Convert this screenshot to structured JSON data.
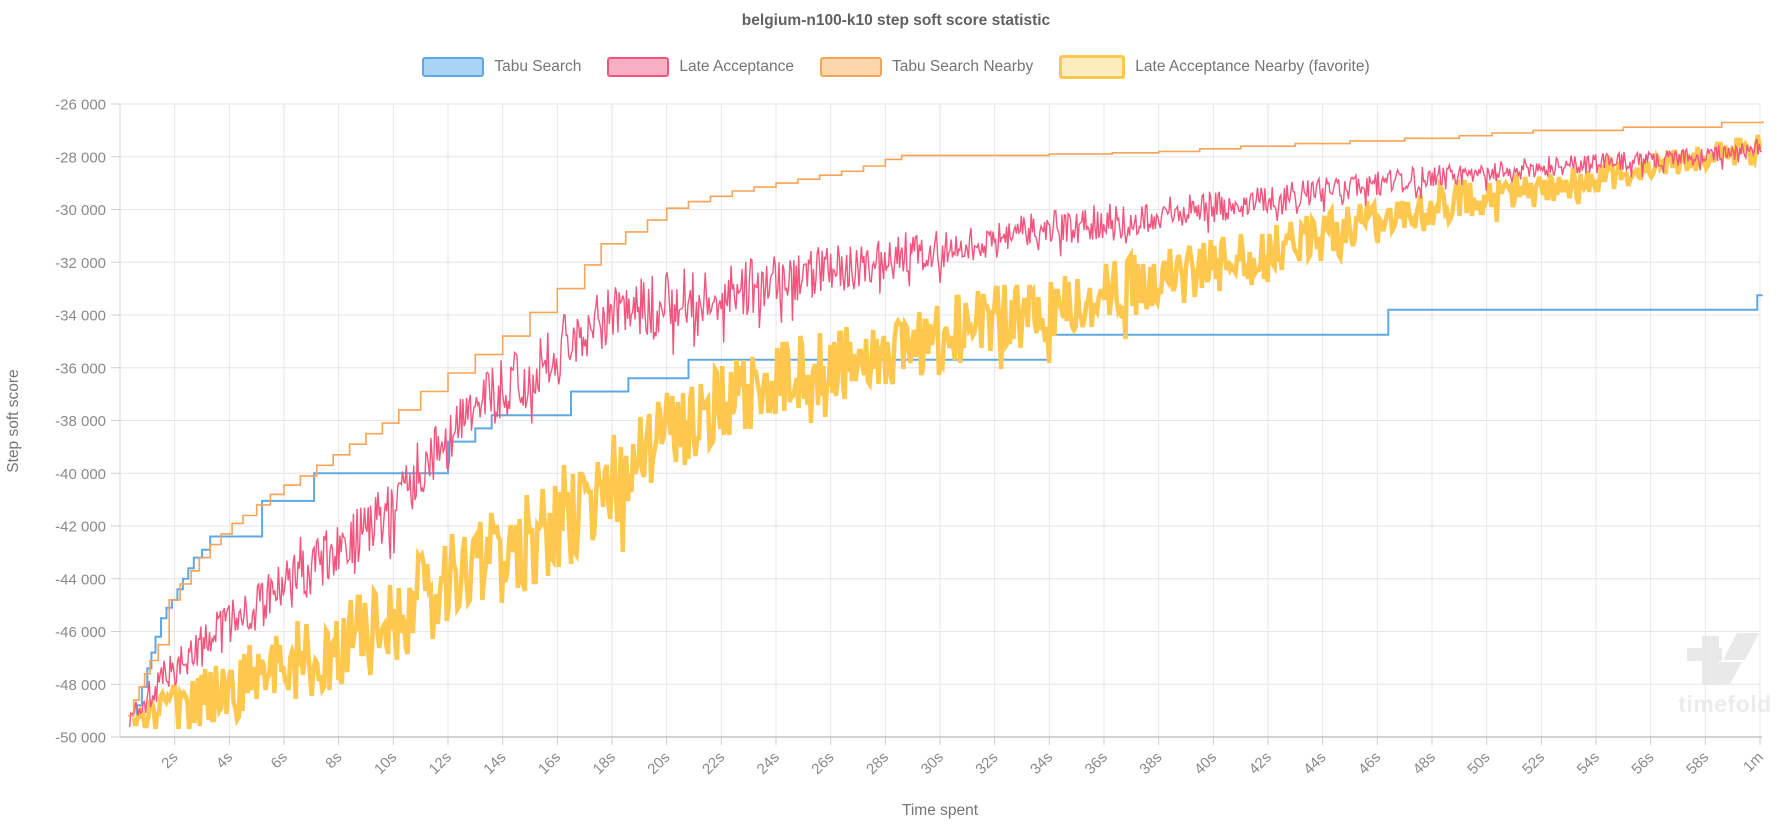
{
  "title": "belgium-n100-k10 step soft score statistic",
  "legend": {
    "items": [
      {
        "label": "Tabu Search",
        "stroke": "#5fa8e6",
        "fill": "#a9d4f5",
        "favorite": false
      },
      {
        "label": "Late Acceptance",
        "stroke": "#f2567e",
        "fill": "#f9b0c5",
        "favorite": false
      },
      {
        "label": "Tabu Search Nearby",
        "stroke": "#f7a457",
        "fill": "#fcd7ab",
        "favorite": false
      },
      {
        "label": "Late Acceptance Nearby (favorite)",
        "stroke": "#fdc84d",
        "fill": "#fdedbc",
        "favorite": true
      }
    ]
  },
  "axes": {
    "x": {
      "title": "Time spent",
      "ticks": [
        {
          "t": 2,
          "label": "2s"
        },
        {
          "t": 4,
          "label": "4s"
        },
        {
          "t": 6,
          "label": "6s"
        },
        {
          "t": 8,
          "label": "8s"
        },
        {
          "t": 10,
          "label": "10s"
        },
        {
          "t": 12,
          "label": "12s"
        },
        {
          "t": 14,
          "label": "14s"
        },
        {
          "t": 16,
          "label": "16s"
        },
        {
          "t": 18,
          "label": "18s"
        },
        {
          "t": 20,
          "label": "20s"
        },
        {
          "t": 22,
          "label": "22s"
        },
        {
          "t": 24,
          "label": "24s"
        },
        {
          "t": 26,
          "label": "26s"
        },
        {
          "t": 28,
          "label": "28s"
        },
        {
          "t": 30,
          "label": "30s"
        },
        {
          "t": 32,
          "label": "32s"
        },
        {
          "t": 34,
          "label": "34s"
        },
        {
          "t": 36,
          "label": "36s"
        },
        {
          "t": 38,
          "label": "38s"
        },
        {
          "t": 40,
          "label": "40s"
        },
        {
          "t": 42,
          "label": "42s"
        },
        {
          "t": 44,
          "label": "44s"
        },
        {
          "t": 46,
          "label": "46s"
        },
        {
          "t": 48,
          "label": "48s"
        },
        {
          "t": 50,
          "label": "50s"
        },
        {
          "t": 52,
          "label": "52s"
        },
        {
          "t": 54,
          "label": "54s"
        },
        {
          "t": 56,
          "label": "56s"
        },
        {
          "t": 58,
          "label": "58s"
        },
        {
          "t": 60,
          "label": "1m"
        }
      ]
    },
    "y": {
      "title": "Step soft score",
      "ticks": [
        {
          "v": -26000,
          "label": "-26 000"
        },
        {
          "v": -28000,
          "label": "-28 000"
        },
        {
          "v": -30000,
          "label": "-30 000"
        },
        {
          "v": -32000,
          "label": "-32 000"
        },
        {
          "v": -34000,
          "label": "-34 000"
        },
        {
          "v": -36000,
          "label": "-36 000"
        },
        {
          "v": -38000,
          "label": "-38 000"
        },
        {
          "v": -40000,
          "label": "-40 000"
        },
        {
          "v": -42000,
          "label": "-42 000"
        },
        {
          "v": -44000,
          "label": "-44 000"
        },
        {
          "v": -46000,
          "label": "-46 000"
        },
        {
          "v": -48000,
          "label": "-48 000"
        },
        {
          "v": -50000,
          "label": "-50 000"
        }
      ]
    }
  },
  "chart_data": {
    "type": "line",
    "xlabel": "Time spent",
    "ylabel": "Step soft score",
    "xlim": [
      0,
      60.1
    ],
    "ylim": [
      -50000,
      -26000
    ],
    "grid": true,
    "legend_position": "top",
    "series": [
      {
        "id": "tabu-search",
        "name": "Tabu Search",
        "color": "#5fa8e6",
        "style": "step",
        "stroke_width": 2,
        "points": [
          [
            0.5,
            -49300
          ],
          [
            0.62,
            -48800
          ],
          [
            0.8,
            -48100
          ],
          [
            1.0,
            -47400
          ],
          [
            1.15,
            -46800
          ],
          [
            1.3,
            -46200
          ],
          [
            1.5,
            -45500
          ],
          [
            1.7,
            -45100
          ],
          [
            1.9,
            -44800
          ],
          [
            2.1,
            -44400
          ],
          [
            2.3,
            -44000
          ],
          [
            2.5,
            -43600
          ],
          [
            2.7,
            -43200
          ],
          [
            3.0,
            -42900
          ],
          [
            3.3,
            -42400
          ],
          [
            5.2,
            -41050
          ],
          [
            7.1,
            -40000
          ],
          [
            12.0,
            -38800
          ],
          [
            13.0,
            -38300
          ],
          [
            13.6,
            -37800
          ],
          [
            16.5,
            -36900
          ],
          [
            18.6,
            -36400
          ],
          [
            20.8,
            -35700
          ],
          [
            34.0,
            -34750
          ],
          [
            46.4,
            -33800
          ],
          [
            59.9,
            -33250
          ],
          [
            60.1,
            -33250
          ]
        ]
      },
      {
        "id": "late-acceptance-nearby",
        "name": "Late Acceptance Nearby (favorite)",
        "color": "#fdc84d",
        "style": "noisy",
        "stroke_width": 4.5,
        "seed": 4242,
        "dt": 0.065,
        "quantize": 3,
        "points": [
          [
            0.45,
            -49400
          ],
          [
            1,
            -49200
          ],
          [
            2,
            -48900
          ],
          [
            3,
            -48500
          ],
          [
            4,
            -48100
          ],
          [
            5,
            -47700
          ],
          [
            6,
            -47200
          ],
          [
            7,
            -46800
          ],
          [
            8,
            -46300
          ],
          [
            9,
            -45900
          ],
          [
            10,
            -45400
          ],
          [
            11,
            -44900
          ],
          [
            12,
            -44300
          ],
          [
            13,
            -43700
          ],
          [
            14,
            -43100
          ],
          [
            15,
            -42500
          ],
          [
            16,
            -41800
          ],
          [
            17,
            -41200
          ],
          [
            18,
            -40400
          ],
          [
            19,
            -39500
          ],
          [
            20,
            -38600
          ],
          [
            21,
            -38000
          ],
          [
            22,
            -37500
          ],
          [
            23,
            -37000
          ],
          [
            24,
            -36500
          ],
          [
            25,
            -36200
          ],
          [
            26,
            -35900
          ],
          [
            27,
            -35600
          ],
          [
            28,
            -35400
          ],
          [
            29,
            -35100
          ],
          [
            30,
            -34900
          ],
          [
            31,
            -34500
          ],
          [
            32,
            -34200
          ],
          [
            33,
            -33900
          ],
          [
            34,
            -33700
          ],
          [
            35,
            -33400
          ],
          [
            36,
            -33200
          ],
          [
            37,
            -32900
          ],
          [
            38,
            -32700
          ],
          [
            39,
            -32450
          ],
          [
            40,
            -32200
          ],
          [
            41,
            -31900
          ],
          [
            42,
            -31600
          ],
          [
            43,
            -31300
          ],
          [
            44,
            -31000
          ],
          [
            45,
            -30700
          ],
          [
            46,
            -30400
          ],
          [
            47,
            -30150
          ],
          [
            48,
            -29900
          ],
          [
            49,
            -29650
          ],
          [
            50,
            -29400
          ],
          [
            51,
            -29300
          ],
          [
            52,
            -29200
          ],
          [
            53,
            -29000
          ],
          [
            54,
            -28900
          ],
          [
            55,
            -28650
          ],
          [
            56,
            -28400
          ],
          [
            57,
            -28200
          ],
          [
            58,
            -28000
          ],
          [
            59,
            -27800
          ],
          [
            60.1,
            -27500
          ]
        ],
        "noise_amp": [
          [
            0.45,
            400
          ],
          [
            2,
            900
          ],
          [
            5,
            1500
          ],
          [
            8,
            1800
          ],
          [
            12,
            1900
          ],
          [
            16,
            1900
          ],
          [
            20,
            1700
          ],
          [
            24,
            1500
          ],
          [
            28,
            1400
          ],
          [
            32,
            1300
          ],
          [
            36,
            1200
          ],
          [
            40,
            1050
          ],
          [
            44,
            900
          ],
          [
            48,
            800
          ],
          [
            52,
            650
          ],
          [
            56,
            520
          ],
          [
            60.1,
            420
          ]
        ]
      },
      {
        "id": "late-acceptance",
        "name": "Late Acceptance",
        "color": "#f2567e",
        "style": "noisy",
        "stroke_width": 1.4,
        "seed": 1337,
        "dt": 0.045,
        "quantize": 0,
        "points": [
          [
            0.35,
            -49300
          ],
          [
            1,
            -48400
          ],
          [
            2,
            -47400
          ],
          [
            3,
            -46500
          ],
          [
            4,
            -45800
          ],
          [
            5,
            -45000
          ],
          [
            6,
            -44300
          ],
          [
            7,
            -43600
          ],
          [
            8,
            -42900
          ],
          [
            9,
            -42100
          ],
          [
            10,
            -41300
          ],
          [
            11,
            -40000
          ],
          [
            12,
            -38800
          ],
          [
            13,
            -37600
          ],
          [
            14,
            -36800
          ],
          [
            15,
            -36100
          ],
          [
            16,
            -35400
          ],
          [
            17,
            -34500
          ],
          [
            18,
            -34000
          ],
          [
            19,
            -33800
          ],
          [
            20,
            -33500
          ],
          [
            23,
            -32900
          ],
          [
            26,
            -32300
          ],
          [
            29,
            -31600
          ],
          [
            32,
            -31100
          ],
          [
            35,
            -30600
          ],
          [
            38,
            -30200
          ],
          [
            40,
            -29900
          ],
          [
            42,
            -29600
          ],
          [
            44,
            -29300
          ],
          [
            46,
            -29000
          ],
          [
            48,
            -28800
          ],
          [
            50,
            -28550
          ],
          [
            52,
            -28400
          ],
          [
            54,
            -28250
          ],
          [
            56,
            -28100
          ],
          [
            58,
            -27950
          ],
          [
            59.5,
            -27750
          ],
          [
            60.1,
            -27600
          ]
        ],
        "noise_amp": [
          [
            0.35,
            500
          ],
          [
            2,
            800
          ],
          [
            5,
            1000
          ],
          [
            10,
            1100
          ],
          [
            15,
            1200
          ],
          [
            20,
            1200
          ],
          [
            25,
            1000
          ],
          [
            30,
            800
          ],
          [
            35,
            700
          ],
          [
            40,
            600
          ],
          [
            45,
            500
          ],
          [
            50,
            430
          ],
          [
            55,
            380
          ],
          [
            60.1,
            330
          ]
        ]
      },
      {
        "id": "tabu-search-nearby",
        "name": "Tabu Search Nearby",
        "color": "#f7a457",
        "style": "step",
        "stroke_width": 1.6,
        "points": [
          [
            0.3,
            -49200
          ],
          [
            0.5,
            -48600
          ],
          [
            0.7,
            -48100
          ],
          [
            0.9,
            -47600
          ],
          [
            1.1,
            -47100
          ],
          [
            1.4,
            -46500
          ],
          [
            1.8,
            -44800
          ],
          [
            2.2,
            -44200
          ],
          [
            2.6,
            -43700
          ],
          [
            2.9,
            -43200
          ],
          [
            3.3,
            -42700
          ],
          [
            3.7,
            -42300
          ],
          [
            4.1,
            -41900
          ],
          [
            4.5,
            -41600
          ],
          [
            5.0,
            -41200
          ],
          [
            5.5,
            -40800
          ],
          [
            6.0,
            -40450
          ],
          [
            6.6,
            -40100
          ],
          [
            7.2,
            -39700
          ],
          [
            7.8,
            -39300
          ],
          [
            8.4,
            -38900
          ],
          [
            9.0,
            -38500
          ],
          [
            9.6,
            -38100
          ],
          [
            10.2,
            -37600
          ],
          [
            11,
            -36900
          ],
          [
            12,
            -36200
          ],
          [
            13,
            -35500
          ],
          [
            14,
            -34800
          ],
          [
            15,
            -33900
          ],
          [
            16,
            -33000
          ],
          [
            17,
            -32100
          ],
          [
            17.6,
            -31300
          ],
          [
            18.5,
            -30850
          ],
          [
            19.3,
            -30400
          ],
          [
            20,
            -29950
          ],
          [
            20.8,
            -29700
          ],
          [
            21.6,
            -29500
          ],
          [
            22.4,
            -29300
          ],
          [
            23.2,
            -29150
          ],
          [
            24,
            -29000
          ],
          [
            24.8,
            -28850
          ],
          [
            25.6,
            -28700
          ],
          [
            26.4,
            -28550
          ],
          [
            27.2,
            -28350
          ],
          [
            28,
            -28100
          ],
          [
            28.6,
            -27950
          ],
          [
            34,
            -27900
          ],
          [
            36.3,
            -27850
          ],
          [
            38,
            -27800
          ],
          [
            39.5,
            -27700
          ],
          [
            41,
            -27600
          ],
          [
            43,
            -27500
          ],
          [
            45,
            -27400
          ],
          [
            47,
            -27300
          ],
          [
            49,
            -27200
          ],
          [
            50.2,
            -27100
          ],
          [
            51.7,
            -27000
          ],
          [
            55,
            -26880
          ],
          [
            58.6,
            -26700
          ],
          [
            60.1,
            -26650
          ]
        ]
      }
    ]
  },
  "watermark": {
    "text": "timefold"
  }
}
